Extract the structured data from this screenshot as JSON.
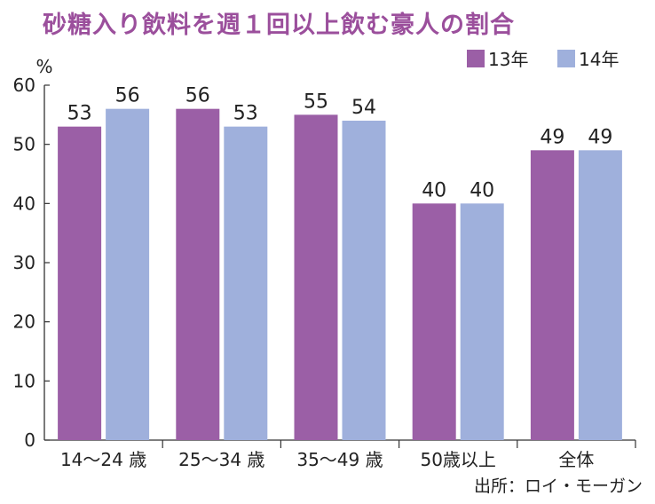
{
  "title": "砂糖入り飲料を週１回以上飲む豪人の割合",
  "source": "出所：ロイ・モーガン",
  "chart_data": {
    "type": "bar",
    "title": "砂糖入り飲料を週１回以上飲む豪人の割合",
    "ylabel": "%",
    "xlabel": "",
    "ylim": [
      0,
      60
    ],
    "yticks": [
      0,
      10,
      20,
      30,
      40,
      50,
      60
    ],
    "grid": false,
    "legend_position": "top-right",
    "categories": [
      "14～24 歳",
      "25～34 歳",
      "35～49 歳",
      "50歳以上",
      "全体"
    ],
    "series": [
      {
        "name": "13年",
        "color": "#9b5fa6",
        "values": [
          53,
          56,
          55,
          40,
          49
        ]
      },
      {
        "name": "14年",
        "color": "#9fb0dc",
        "values": [
          56,
          53,
          54,
          40,
          49
        ]
      }
    ]
  }
}
